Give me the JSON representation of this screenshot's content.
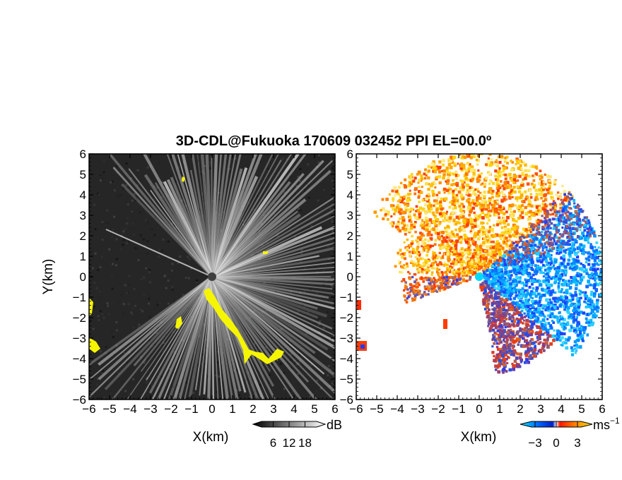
{
  "title": "3D-CDL@Fukuoka 170609 032452 PPI EL=00.0º",
  "chart_data": [
    {
      "type": "heatmap",
      "quantity": "signal intensity",
      "xlabel": "X(km)",
      "ylabel": "Y(km)",
      "xlim": [
        -6,
        6
      ],
      "ylim": [
        -6,
        6
      ],
      "x_ticks": [
        "−6",
        "−5",
        "−4",
        "−3",
        "−2",
        "−1",
        "0",
        "1",
        "2",
        "3",
        "4",
        "5",
        "6"
      ],
      "y_ticks": [
        "6",
        "5",
        "4",
        "3",
        "2",
        "1",
        "0",
        "−1",
        "−2",
        "−3",
        "−4",
        "−5",
        "−6"
      ],
      "colorbar": {
        "unit": "dB",
        "ticks": [
          "6",
          "12",
          "18"
        ],
        "range": [
          0,
          24
        ],
        "colors": [
          "#000000",
          "#ffffff"
        ]
      },
      "background_color": "#262626",
      "highlight_color": "#f5f500",
      "beam_sector_deg": [
        0,
        135,
        215,
        360
      ]
    },
    {
      "type": "heatmap",
      "quantity": "radial velocity",
      "xlabel": "X(km)",
      "xlim": [
        -6,
        6
      ],
      "ylim": [
        -6,
        6
      ],
      "x_ticks": [
        "−6",
        "−5",
        "−4",
        "−3",
        "−2",
        "−1",
        "0",
        "1",
        "2",
        "3",
        "4",
        "5",
        "6"
      ],
      "y_ticks": [
        "6",
        "5",
        "4",
        "3",
        "2",
        "1",
        "0",
        "−1",
        "−2",
        "−3",
        "−4",
        "−5",
        "−6"
      ],
      "colorbar": {
        "unit": "ms",
        "unit_exponent": "−1",
        "ticks": [
          "−3",
          "0",
          "3"
        ],
        "range": [
          -4.5,
          4.5
        ],
        "colors": [
          "#00e5ff",
          "#0066ff",
          "#0020c8",
          "#ffffff",
          "#ff1400",
          "#ff8c00",
          "#ffe000"
        ]
      },
      "sectors": [
        {
          "direction": "north-west",
          "color_scale": [
            "#ff3200",
            "#ff8c00",
            "#ffd200",
            "#fff0a0"
          ]
        },
        {
          "direction": "east",
          "color_scale": [
            "#1e3cff",
            "#0a78ff",
            "#00b4ff",
            "#3cdcff"
          ]
        },
        {
          "direction": "south-east",
          "color_scale": [
            "#1e3cff",
            "#ff3c00",
            "#0a50ff",
            "#ff6400"
          ]
        }
      ],
      "center_marker_color": "#00d8ff"
    }
  ]
}
